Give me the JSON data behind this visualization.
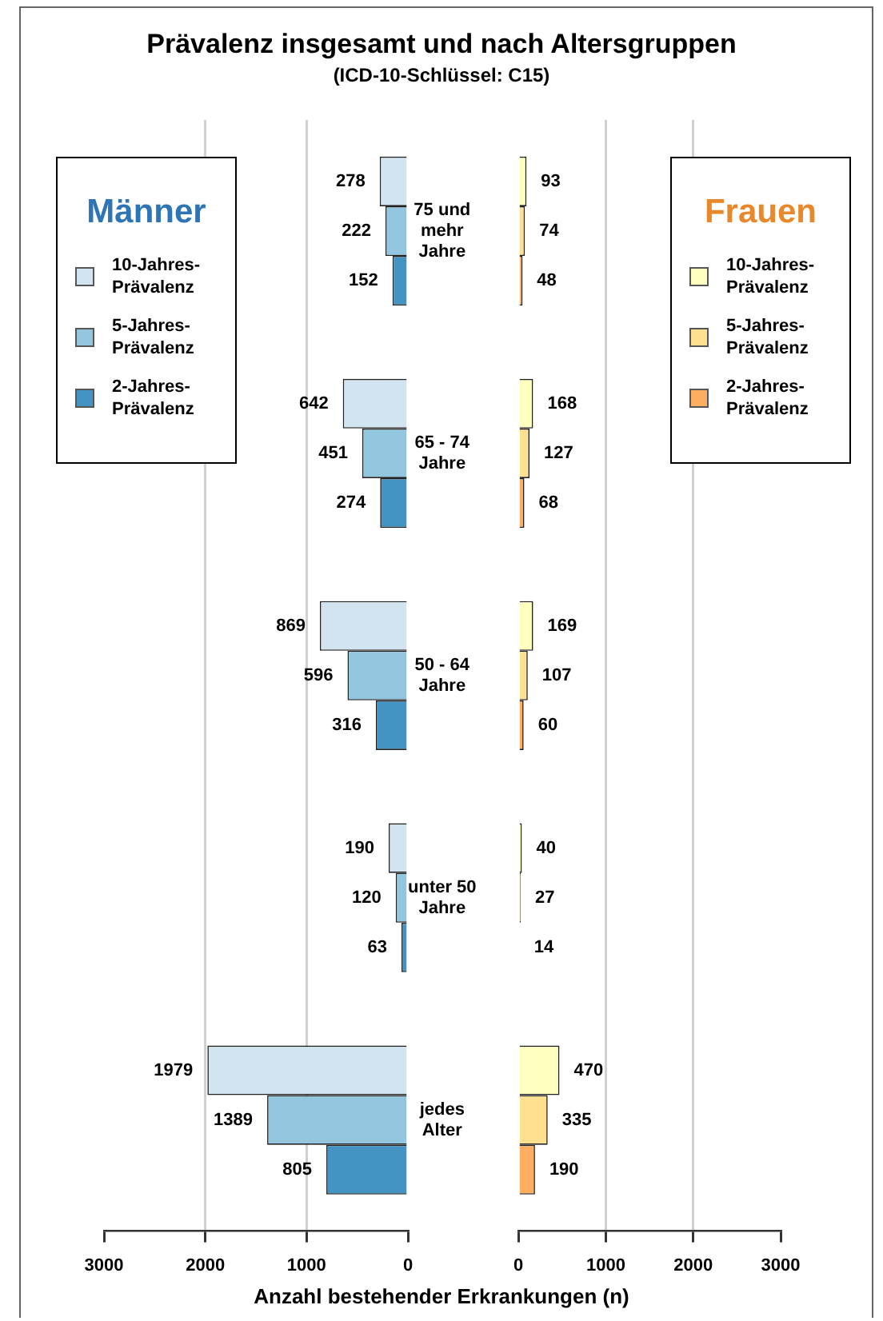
{
  "chart_data": [
    {
      "type": "bar",
      "orientation": "horizontal",
      "title": "Prävalenz insgesamt und nach Altersgruppen",
      "subtitle": "(ICD-10-Schlüssel: C15)",
      "xlabel": "Anzahl bestehender Erkrankungen (n)",
      "legend_title": "Männer",
      "legend": "top left",
      "categories": [
        "75 und mehr Jahre",
        "65 - 74 Jahre",
        "50 - 64 Jahre",
        "unter 50 Jahre",
        "jedes Alter"
      ],
      "series": [
        {
          "name": "10-Jahres-Prävalenz",
          "color": "#d2e4ef",
          "values": [
            278,
            642,
            869,
            190,
            1979
          ]
        },
        {
          "name": "5-Jahres-Prävalenz",
          "color": "#92c5de",
          "values": [
            222,
            451,
            596,
            120,
            1389
          ]
        },
        {
          "name": "2-Jahres-Prävalenz",
          "color": "#4393c3",
          "values": [
            152,
            274,
            316,
            63,
            805
          ]
        }
      ],
      "xlim": [
        3000,
        0
      ],
      "xticks": [
        3000,
        2000,
        1000,
        0
      ],
      "grid": "x",
      "data_labels": true
    },
    {
      "type": "bar",
      "orientation": "horizontal",
      "legend_title": "Frauen",
      "legend": "top right",
      "tick_labels": "x",
      "series": [
        {
          "name": "10-Jahres-Prävalenz",
          "color": "#ffffbf",
          "values": [
            93,
            168,
            169,
            40,
            470
          ]
        },
        {
          "name": "5-Jahres-Prävalenz",
          "color": "#fee090",
          "values": [
            74,
            127,
            107,
            27,
            335
          ]
        },
        {
          "name": "2-Jahres-Prävalenz",
          "color": "#fdae61",
          "values": [
            48,
            68,
            60,
            14,
            190
          ]
        }
      ],
      "xlim": [
        0,
        3000
      ],
      "xticks": [
        0,
        1000,
        2000,
        3000
      ],
      "grid": "x",
      "data_labels": true
    }
  ]
}
